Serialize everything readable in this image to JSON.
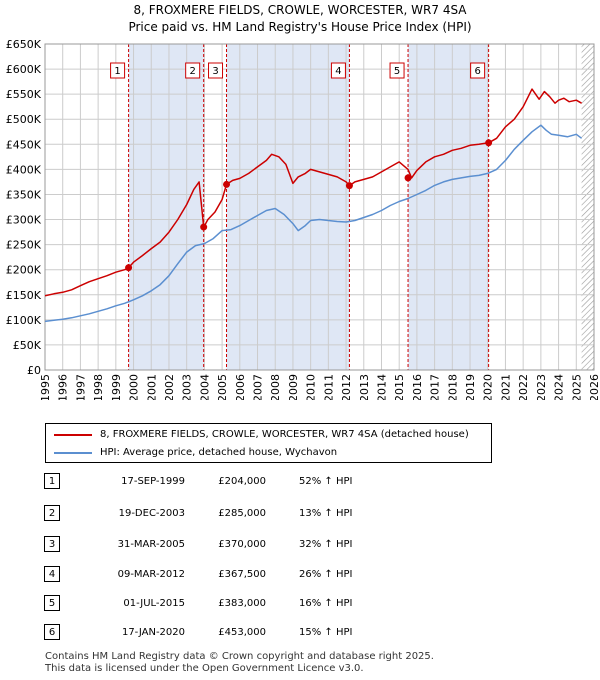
{
  "title_line1": "8, FROXMERE FIELDS, CROWLE, WORCESTER, WR7 4SA",
  "title_line2": "Price paid vs. HM Land Registry's House Price Index (HPI)",
  "chart_data": {
    "type": "line",
    "ylim": [
      0,
      650000
    ],
    "xlim": [
      1995,
      2026
    ],
    "yticks": [
      0,
      50000,
      100000,
      150000,
      200000,
      250000,
      300000,
      350000,
      400000,
      450000,
      500000,
      550000,
      600000,
      650000
    ],
    "ytick_labels": [
      "£0",
      "£50K",
      "£100K",
      "£150K",
      "£200K",
      "£250K",
      "£300K",
      "£350K",
      "£400K",
      "£450K",
      "£500K",
      "£550K",
      "£600K",
      "£650K"
    ],
    "xticks": [
      1995,
      1996,
      1997,
      1998,
      1999,
      2000,
      2001,
      2002,
      2003,
      2004,
      2005,
      2006,
      2007,
      2008,
      2009,
      2010,
      2011,
      2012,
      2013,
      2014,
      2015,
      2016,
      2017,
      2018,
      2019,
      2020,
      2021,
      2022,
      2023,
      2024,
      2025,
      2026
    ],
    "grid": true,
    "colors": {
      "property": "#cc0000",
      "hpi": "#5b8fd0",
      "shade": "#dfe7f5",
      "vline": "#cc0000",
      "grid": "#cccccc"
    },
    "series": [
      {
        "name": "8, FROXMERE FIELDS, CROWLE, WORCESTER, WR7 4SA (detached house)",
        "x": [
          1995.0,
          1995.5,
          1996.0,
          1996.5,
          1997.0,
          1997.5,
          1998.0,
          1998.5,
          1999.0,
          1999.5,
          1999.72,
          2000.0,
          2000.5,
          2001.0,
          2001.5,
          2002.0,
          2002.5,
          2003.0,
          2003.4,
          2003.7,
          2003.96,
          2004.2,
          2004.6,
          2005.0,
          2005.25,
          2005.6,
          2006.0,
          2006.5,
          2007.0,
          2007.5,
          2007.8,
          2008.2,
          2008.6,
          2009.0,
          2009.3,
          2009.7,
          2010.0,
          2010.5,
          2011.0,
          2011.5,
          2012.0,
          2012.19,
          2012.5,
          2013.0,
          2013.5,
          2014.0,
          2014.5,
          2015.0,
          2015.5,
          2015.7,
          2016.0,
          2016.5,
          2017.0,
          2017.5,
          2018.0,
          2018.5,
          2019.0,
          2019.5,
          2020.05,
          2020.5,
          2021.0,
          2021.5,
          2022.0,
          2022.5,
          2022.9,
          2023.2,
          2023.5,
          2023.8,
          2024.0,
          2024.3,
          2024.6,
          2025.0,
          2025.3
        ],
        "values": [
          148000,
          152000,
          155000,
          160000,
          168000,
          176000,
          182000,
          188000,
          195000,
          200000,
          204000,
          215000,
          228000,
          242000,
          255000,
          275000,
          300000,
          330000,
          360000,
          375000,
          285000,
          300000,
          315000,
          340000,
          370000,
          378000,
          382000,
          392000,
          405000,
          418000,
          430000,
          425000,
          410000,
          372000,
          385000,
          392000,
          400000,
          395000,
          390000,
          385000,
          375000,
          367500,
          375000,
          380000,
          385000,
          395000,
          405000,
          415000,
          400000,
          383000,
          398000,
          415000,
          425000,
          430000,
          438000,
          442000,
          448000,
          450000,
          453000,
          462000,
          485000,
          500000,
          525000,
          560000,
          540000,
          555000,
          545000,
          532000,
          538000,
          542000,
          535000,
          538000,
          532000
        ]
      },
      {
        "name": "HPI: Average price, detached house, Wychavon",
        "x": [
          1995.0,
          1995.5,
          1996.0,
          1996.5,
          1997.0,
          1997.5,
          1998.0,
          1998.5,
          1999.0,
          1999.5,
          2000.0,
          2000.5,
          2001.0,
          2001.5,
          2002.0,
          2002.5,
          2003.0,
          2003.5,
          2004.0,
          2004.5,
          2005.0,
          2005.5,
          2006.0,
          2006.5,
          2007.0,
          2007.5,
          2008.0,
          2008.5,
          2009.0,
          2009.3,
          2009.7,
          2010.0,
          2010.5,
          2011.0,
          2011.5,
          2012.0,
          2012.5,
          2013.0,
          2013.5,
          2014.0,
          2014.5,
          2015.0,
          2015.5,
          2016.0,
          2016.5,
          2017.0,
          2017.5,
          2018.0,
          2018.5,
          2019.0,
          2019.5,
          2020.0,
          2020.5,
          2021.0,
          2021.5,
          2022.0,
          2022.5,
          2023.0,
          2023.3,
          2023.6,
          2024.0,
          2024.5,
          2025.0,
          2025.3
        ],
        "values": [
          97000,
          99000,
          101000,
          104000,
          108000,
          112000,
          117000,
          122000,
          128000,
          133000,
          140000,
          148000,
          158000,
          170000,
          188000,
          212000,
          235000,
          248000,
          252000,
          262000,
          278000,
          280000,
          288000,
          298000,
          308000,
          318000,
          322000,
          310000,
          292000,
          278000,
          288000,
          298000,
          300000,
          298000,
          296000,
          295000,
          298000,
          304000,
          310000,
          318000,
          328000,
          336000,
          342000,
          350000,
          358000,
          368000,
          375000,
          380000,
          383000,
          386000,
          388000,
          392000,
          400000,
          418000,
          440000,
          458000,
          475000,
          488000,
          478000,
          470000,
          468000,
          465000,
          470000,
          462000
        ]
      }
    ],
    "sales": [
      {
        "n": "1",
        "x": 1999.72,
        "value": 204000
      },
      {
        "n": "2",
        "x": 2003.96,
        "value": 285000
      },
      {
        "n": "3",
        "x": 2005.25,
        "value": 370000
      },
      {
        "n": "4",
        "x": 2012.19,
        "value": 367500
      },
      {
        "n": "5",
        "x": 2015.5,
        "value": 383000
      },
      {
        "n": "6",
        "x": 2020.05,
        "value": 453000
      }
    ],
    "shaded_ranges": [
      [
        1999.72,
        2003.96
      ],
      [
        2005.25,
        2012.19
      ],
      [
        2015.5,
        2020.05
      ]
    ],
    "hatch_from": 2025.3
  },
  "legend": {
    "property_label": "8, FROXMERE FIELDS, CROWLE, WORCESTER, WR7 4SA (detached house)",
    "hpi_label": "HPI: Average price, detached house, Wychavon"
  },
  "transactions": [
    {
      "n": "1",
      "date": "17-SEP-1999",
      "price": "£204,000",
      "hpi": "52% ↑ HPI"
    },
    {
      "n": "2",
      "date": "19-DEC-2003",
      "price": "£285,000",
      "hpi": "13% ↑ HPI"
    },
    {
      "n": "3",
      "date": "31-MAR-2005",
      "price": "£370,000",
      "hpi": "32% ↑ HPI"
    },
    {
      "n": "4",
      "date": "09-MAR-2012",
      "price": "£367,500",
      "hpi": "26% ↑ HPI"
    },
    {
      "n": "5",
      "date": "01-JUL-2015",
      "price": "£383,000",
      "hpi": "16% ↑ HPI"
    },
    {
      "n": "6",
      "date": "17-JAN-2020",
      "price": "£453,000",
      "hpi": "15% ↑ HPI"
    }
  ],
  "footer_line1": "Contains HM Land Registry data © Crown copyright and database right 2025.",
  "footer_line2": "This data is licensed under the Open Government Licence v3.0."
}
